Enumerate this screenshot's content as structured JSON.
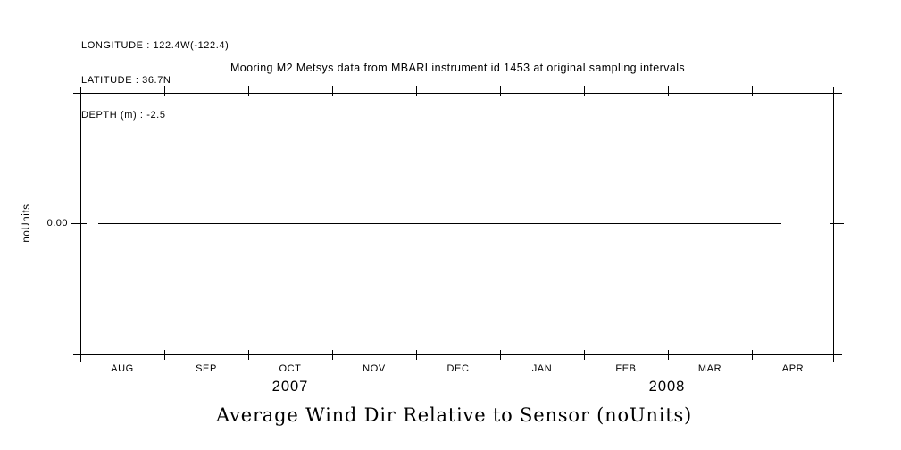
{
  "colors": {
    "background": "#ffffff",
    "ink": "#000000"
  },
  "header_info": {
    "longitude": "LONGITUDE : 122.4W(-122.4)",
    "latitude": "LATITUDE : 36.7N",
    "depth": "DEPTH (m) : -2.5"
  },
  "plot": {
    "title": "Mooring M2 Metsys data from MBARI instrument id 1453 at original sampling intervals",
    "y_axis_label": "noUnits",
    "y_tick_label": "0.00",
    "x_tick_labels": [
      "AUG",
      "SEP",
      "OCT",
      "NOV",
      "DEC",
      "JAN",
      "FEB",
      "MAR",
      "APR"
    ],
    "year_labels": [
      "2007",
      "2008"
    ],
    "caption": "Average Wind Dir Relative to Sensor (noUnits)"
  },
  "chart_data": {
    "type": "line",
    "title": "Mooring M2 Metsys data from MBARI instrument id 1453 at original sampling intervals",
    "caption": "Average Wind Dir Relative to Sensor (noUnits)",
    "xlabel": "",
    "ylabel": "noUnits",
    "x_tick_labels": [
      "AUG",
      "SEP",
      "OCT",
      "NOV",
      "DEC",
      "JAN",
      "FEB",
      "MAR",
      "APR"
    ],
    "x_year_labels": [
      "2007",
      "2008"
    ],
    "y_tick_labels": [
      "0.00"
    ],
    "grid": false,
    "legend_position": "none",
    "series": [
      {
        "name": "Average Wind Dir Relative to Sensor",
        "units": "noUnits",
        "x": [
          "2007-08-07 (approx start)",
          "2008-04-11 (approx end)"
        ],
        "y": [
          0.0,
          0.0
        ],
        "note": "flat line at constant value 0.00 spanning the whole record"
      }
    ],
    "station": {
      "longitude": "122.4W(-122.4)",
      "latitude": "36.7N",
      "depth_m": "-2.5"
    }
  }
}
